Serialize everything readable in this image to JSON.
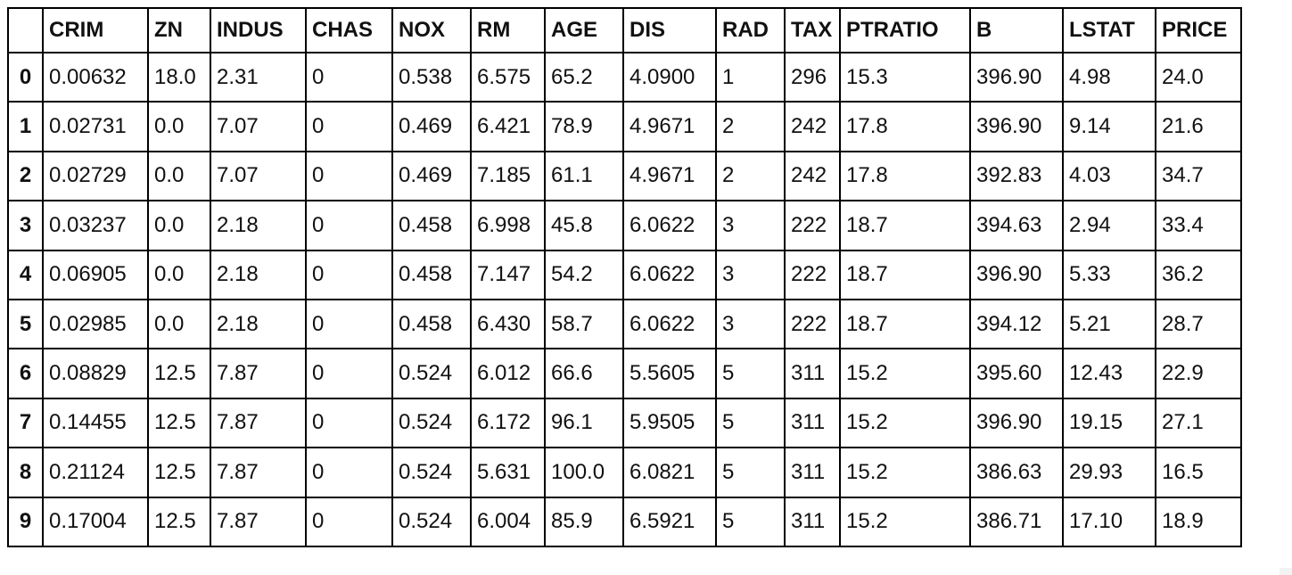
{
  "table": {
    "index_header": "",
    "columns": [
      "CRIM",
      "ZN",
      "INDUS",
      "CHAS",
      "NOX",
      "RM",
      "AGE",
      "DIS",
      "RAD",
      "TAX",
      "PTRATIO",
      "B",
      "LSTAT",
      "PRICE"
    ],
    "rows": [
      {
        "index": "0",
        "cells": [
          "0.00632",
          "18.0",
          "2.31",
          "0",
          "0.538",
          "6.575",
          "65.2",
          "4.0900",
          "1",
          "296",
          "15.3",
          "396.90",
          "4.98",
          "24.0"
        ]
      },
      {
        "index": "1",
        "cells": [
          "0.02731",
          "0.0",
          "7.07",
          "0",
          "0.469",
          "6.421",
          "78.9",
          "4.9671",
          "2",
          "242",
          "17.8",
          "396.90",
          "9.14",
          "21.6"
        ]
      },
      {
        "index": "2",
        "cells": [
          "0.02729",
          "0.0",
          "7.07",
          "0",
          "0.469",
          "7.185",
          "61.1",
          "4.9671",
          "2",
          "242",
          "17.8",
          "392.83",
          "4.03",
          "34.7"
        ]
      },
      {
        "index": "3",
        "cells": [
          "0.03237",
          "0.0",
          "2.18",
          "0",
          "0.458",
          "6.998",
          "45.8",
          "6.0622",
          "3",
          "222",
          "18.7",
          "394.63",
          "2.94",
          "33.4"
        ]
      },
      {
        "index": "4",
        "cells": [
          "0.06905",
          "0.0",
          "2.18",
          "0",
          "0.458",
          "7.147",
          "54.2",
          "6.0622",
          "3",
          "222",
          "18.7",
          "396.90",
          "5.33",
          "36.2"
        ]
      },
      {
        "index": "5",
        "cells": [
          "0.02985",
          "0.0",
          "2.18",
          "0",
          "0.458",
          "6.430",
          "58.7",
          "6.0622",
          "3",
          "222",
          "18.7",
          "394.12",
          "5.21",
          "28.7"
        ]
      },
      {
        "index": "6",
        "cells": [
          "0.08829",
          "12.5",
          "7.87",
          "0",
          "0.524",
          "6.012",
          "66.6",
          "5.5605",
          "5",
          "311",
          "15.2",
          "395.60",
          "12.43",
          "22.9"
        ]
      },
      {
        "index": "7",
        "cells": [
          "0.14455",
          "12.5",
          "7.87",
          "0",
          "0.524",
          "6.172",
          "96.1",
          "5.9505",
          "5",
          "311",
          "15.2",
          "396.90",
          "19.15",
          "27.1"
        ]
      },
      {
        "index": "8",
        "cells": [
          "0.21124",
          "12.5",
          "7.87",
          "0",
          "0.524",
          "5.631",
          "100.0",
          "6.0821",
          "5",
          "311",
          "15.2",
          "386.63",
          "29.93",
          "16.5"
        ]
      },
      {
        "index": "9",
        "cells": [
          "0.17004",
          "12.5",
          "7.87",
          "0",
          "0.524",
          "6.004",
          "85.9",
          "6.5921",
          "5",
          "311",
          "15.2",
          "386.71",
          "17.10",
          "18.9"
        ]
      }
    ]
  }
}
